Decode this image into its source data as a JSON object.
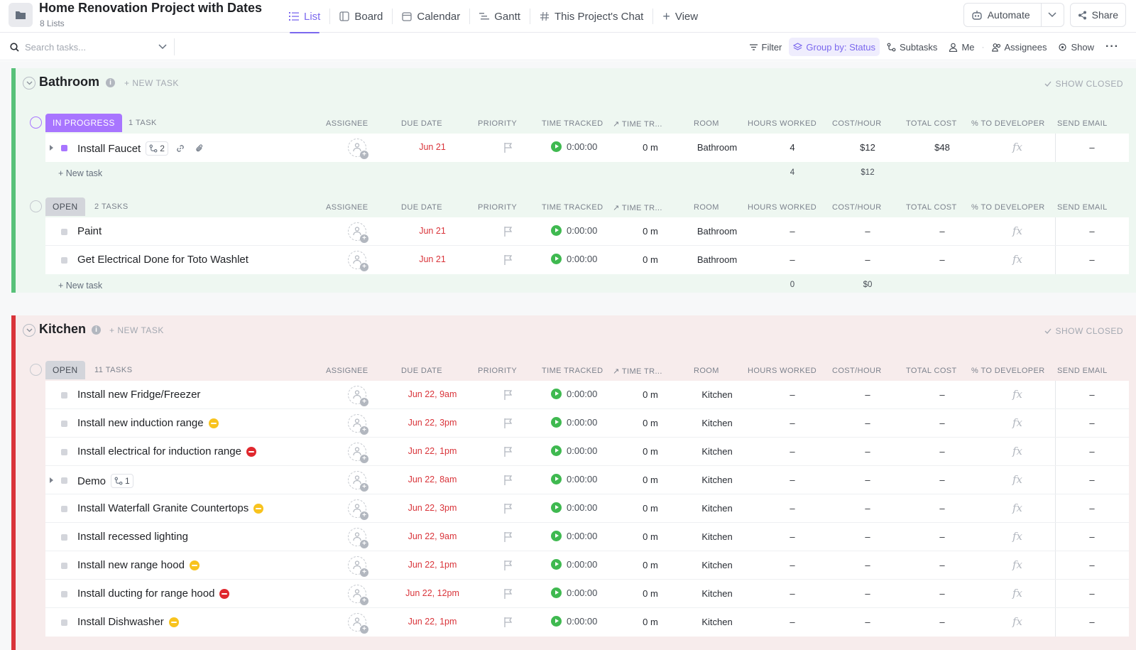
{
  "header": {
    "title": "Home Renovation Project with Dates",
    "subtitle": "8 Lists",
    "tabs": [
      {
        "label": "List",
        "icon": "list-icon",
        "active": true
      },
      {
        "label": "Board",
        "icon": "board-icon"
      },
      {
        "label": "Calendar",
        "icon": "calendar-icon"
      },
      {
        "label": "Gantt",
        "icon": "gantt-icon"
      },
      {
        "label": "This Project's Chat",
        "icon": "hash-icon"
      }
    ],
    "add_view": "View",
    "automate": "Automate",
    "share": "Share"
  },
  "toolbar": {
    "search_placeholder": "Search tasks...",
    "filter": "Filter",
    "group_by": "Group by: Status",
    "subtasks": "Subtasks",
    "me": "Me",
    "assignees": "Assignees",
    "show": "Show"
  },
  "columns": {
    "assignee": "ASSIGNEE",
    "due_date": "DUE DATE",
    "priority": "PRIORITY",
    "time_tracked": "TIME TRACKED",
    "time_tr": "TIME TR...",
    "room": "ROOM",
    "hours_worked": "HOURS WORKED",
    "cost_hour": "COST/HOUR",
    "total_cost": "TOTAL COST",
    "pct_dev": "% TO DEVELOPER",
    "send_email": "SEND EMAIL"
  },
  "lists": {
    "bathroom": {
      "name": "Bathroom",
      "new_task": "+ NEW TASK",
      "show_closed": "SHOW CLOSED",
      "color": "#58c179",
      "groups": {
        "in_progress": {
          "status": "IN PROGRESS",
          "count": "1 TASK",
          "tasks": [
            {
              "name": "Install Faucet",
              "subtasks": "2",
              "due": "Jun 21",
              "time": "0:00:00",
              "time_tr": "0 m",
              "room": "Bathroom",
              "hours": "4",
              "cost_hour": "$12",
              "total": "$48",
              "email": "–"
            }
          ],
          "new_task": "+ New task",
          "sum_hours": "4",
          "sum_cost": "$12"
        },
        "open": {
          "status": "OPEN",
          "count": "2 TASKS",
          "tasks": [
            {
              "name": "Paint",
              "due": "Jun 21",
              "time": "0:00:00",
              "time_tr": "0 m",
              "room": "Bathroom",
              "hours": "–",
              "cost_hour": "–",
              "total": "–",
              "email": "–"
            },
            {
              "name": "Get Electrical Done for Toto Washlet",
              "due": "Jun 21",
              "time": "0:00:00",
              "time_tr": "0 m",
              "room": "Bathroom",
              "hours": "–",
              "cost_hour": "–",
              "total": "–",
              "email": "–"
            }
          ],
          "new_task": "+ New task",
          "sum_hours": "0",
          "sum_cost": "$0"
        }
      }
    },
    "kitchen": {
      "name": "Kitchen",
      "new_task": "+ NEW TASK",
      "show_closed": "SHOW CLOSED",
      "color": "#d9343a",
      "groups": {
        "open": {
          "status": "OPEN",
          "count": "11 TASKS",
          "tasks": [
            {
              "name": "Install new Fridge/Freezer",
              "due": "Jun 22, 9am",
              "time": "0:00:00",
              "time_tr": "0 m",
              "room": "Kitchen",
              "hours": "–",
              "cost_hour": "–",
              "total": "–",
              "email": "–"
            },
            {
              "name": "Install new induction range",
              "badge": "yellow",
              "due": "Jun 22, 3pm",
              "time": "0:00:00",
              "time_tr": "0 m",
              "room": "Kitchen",
              "hours": "–",
              "cost_hour": "–",
              "total": "–",
              "email": "–"
            },
            {
              "name": "Install electrical for induction range",
              "badge": "red",
              "due": "Jun 22, 1pm",
              "time": "0:00:00",
              "time_tr": "0 m",
              "room": "Kitchen",
              "hours": "–",
              "cost_hour": "–",
              "total": "–",
              "email": "–"
            },
            {
              "name": "Demo",
              "subtasks": "1",
              "due": "Jun 22, 8am",
              "time": "0:00:00",
              "time_tr": "0 m",
              "room": "Kitchen",
              "hours": "–",
              "cost_hour": "–",
              "total": "–",
              "email": "–"
            },
            {
              "name": "Install Waterfall Granite Countertops",
              "badge": "yellow",
              "due": "Jun 22, 3pm",
              "time": "0:00:00",
              "time_tr": "0 m",
              "room": "Kitchen",
              "hours": "–",
              "cost_hour": "–",
              "total": "–",
              "email": "–"
            },
            {
              "name": "Install recessed lighting",
              "due": "Jun 22, 9am",
              "time": "0:00:00",
              "time_tr": "0 m",
              "room": "Kitchen",
              "hours": "–",
              "cost_hour": "–",
              "total": "–",
              "email": "–"
            },
            {
              "name": "Install new range hood",
              "badge": "yellow",
              "due": "Jun 22, 1pm",
              "time": "0:00:00",
              "time_tr": "0 m",
              "room": "Kitchen",
              "hours": "–",
              "cost_hour": "–",
              "total": "–",
              "email": "–"
            },
            {
              "name": "Install ducting for range hood",
              "badge": "red",
              "due": "Jun 22, 12pm",
              "time": "0:00:00",
              "time_tr": "0 m",
              "room": "Kitchen",
              "hours": "–",
              "cost_hour": "–",
              "total": "–",
              "email": "–"
            },
            {
              "name": "Install Dishwasher",
              "badge": "yellow",
              "due": "Jun 22, 1pm",
              "time": "0:00:00",
              "time_tr": "0 m",
              "room": "Kitchen",
              "hours": "–",
              "cost_hour": "–",
              "total": "–",
              "email": "–"
            }
          ]
        }
      }
    }
  }
}
